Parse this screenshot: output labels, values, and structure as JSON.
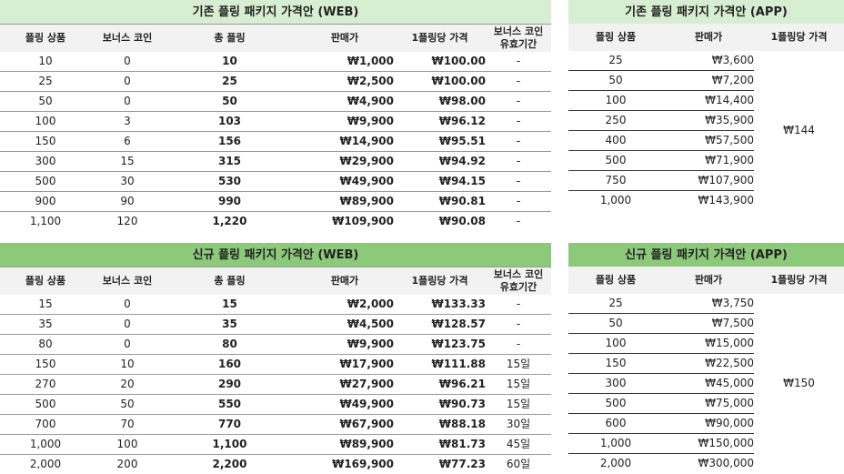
{
  "old_web": {
    "title": "기존 플링 패키지 가격안 (WEB)",
    "headers": [
      "플링 상품",
      "보너스 코인",
      "총 플링",
      "판매가",
      "1플링당 가격",
      "보너스 코인\n유효기간"
    ],
    "rows": [
      [
        "10",
        "0",
        "10",
        "₩1,000",
        "₩100.00",
        "-"
      ],
      [
        "25",
        "0",
        "25",
        "₩2,500",
        "₩100.00",
        "-"
      ],
      [
        "50",
        "0",
        "50",
        "₩4,900",
        "₩98.00",
        "-"
      ],
      [
        "100",
        "3",
        "103",
        "₩9,900",
        "₩96.12",
        "-"
      ],
      [
        "150",
        "6",
        "156",
        "₩14,900",
        "₩95.51",
        "-"
      ],
      [
        "300",
        "15",
        "315",
        "₩29,900",
        "₩94.92",
        "-"
      ],
      [
        "500",
        "30",
        "530",
        "₩49,900",
        "₩94.15",
        "-"
      ],
      [
        "900",
        "90",
        "990",
        "₩89,900",
        "₩90.81",
        "-"
      ],
      [
        "1,100",
        "120",
        "1,220",
        "₩109,900",
        "₩90.08",
        "-"
      ]
    ]
  },
  "old_app": {
    "title": "기존 플링 패키지 가격안 (APP)",
    "headers": [
      "플링 상품",
      "판매가",
      "1플링당 가격"
    ],
    "unit_price": "₩144",
    "rows": [
      [
        "25",
        "₩3,600"
      ],
      [
        "50",
        "₩7,200"
      ],
      [
        "100",
        "₩14,400"
      ],
      [
        "250",
        "₩35,900"
      ],
      [
        "400",
        "₩57,500"
      ],
      [
        "500",
        "₩71,900"
      ],
      [
        "750",
        "₩107,900"
      ],
      [
        "1,000",
        "₩143,900"
      ]
    ]
  },
  "new_web": {
    "title": "신규 플링 패키지 가격안 (WEB)",
    "headers": [
      "플링 상품",
      "보너스 코인",
      "총 플링",
      "판매가",
      "1플링당 가격",
      "보너스 코인\n유효기간"
    ],
    "rows": [
      [
        "15",
        "0",
        "15",
        "₩2,000",
        "₩133.33",
        "-"
      ],
      [
        "35",
        "0",
        "35",
        "₩4,500",
        "₩128.57",
        "-"
      ],
      [
        "80",
        "0",
        "80",
        "₩9,900",
        "₩123.75",
        "-"
      ],
      [
        "150",
        "10",
        "160",
        "₩17,900",
        "₩111.88",
        "15일"
      ],
      [
        "270",
        "20",
        "290",
        "₩27,900",
        "₩96.21",
        "15일"
      ],
      [
        "500",
        "50",
        "550",
        "₩49,900",
        "₩90.73",
        "15일"
      ],
      [
        "700",
        "70",
        "770",
        "₩67,900",
        "₩88.18",
        "30일"
      ],
      [
        "1,000",
        "100",
        "1,100",
        "₩89,900",
        "₩81.73",
        "45일"
      ],
      [
        "2,000",
        "200",
        "2,200",
        "₩169,900",
        "₩77.23",
        "60일"
      ]
    ]
  },
  "new_app": {
    "title": "신규 플링 패키지 가격안 (APP)",
    "headers": [
      "플링 상품",
      "판매가",
      "1플링당 가격"
    ],
    "unit_price": "₩150",
    "rows": [
      [
        "25",
        "₩3,750"
      ],
      [
        "50",
        "₩7,500"
      ],
      [
        "100",
        "₩15,000"
      ],
      [
        "150",
        "₩22,500"
      ],
      [
        "300",
        "₩45,000"
      ],
      [
        "500",
        "₩75,000"
      ],
      [
        "600",
        "₩90,000"
      ],
      [
        "1,000",
        "₩150,000"
      ],
      [
        "2,000",
        "₩300,000"
      ]
    ]
  }
}
